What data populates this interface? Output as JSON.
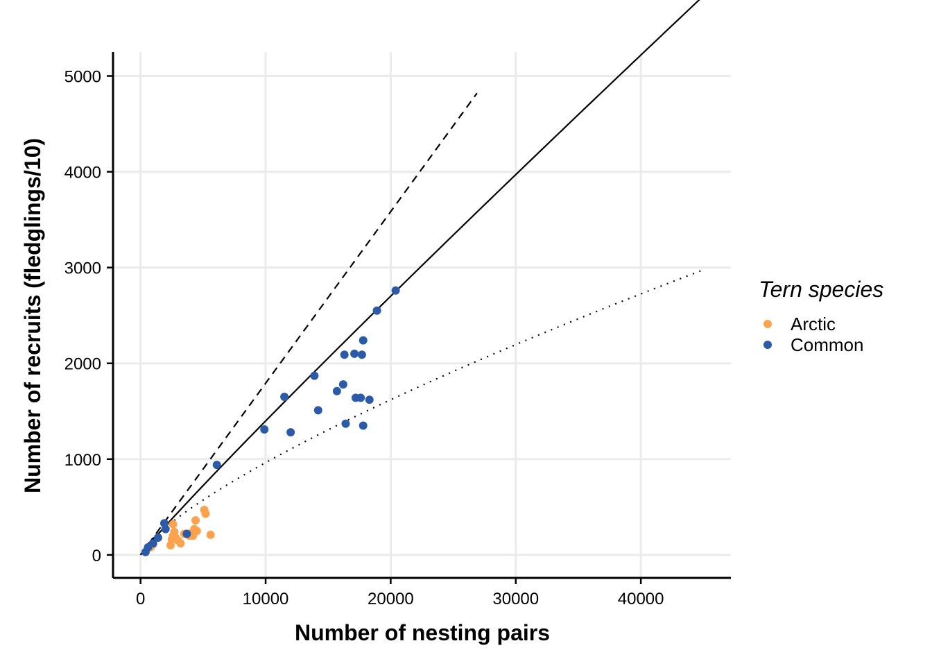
{
  "chart_data": {
    "type": "scatter",
    "xlabel": "Number of nesting pairs",
    "ylabel": "Number of recruits (fledglings/10)",
    "xlim": [
      -2200,
      47200
    ],
    "ylim": [
      -240,
      5250
    ],
    "x_ticks": [
      0,
      10000,
      20000,
      30000,
      40000
    ],
    "y_ticks": [
      0,
      1000,
      2000,
      3000,
      4000,
      5000
    ],
    "x_tick_labels": [
      "0",
      "10000",
      "20000",
      "30000",
      "40000"
    ],
    "y_tick_labels": [
      "0",
      "1000",
      "2000",
      "3000",
      "4000",
      "5000"
    ],
    "grid": true,
    "legend": {
      "title": "Tern species",
      "position": "right"
    },
    "series": [
      {
        "name": "Arctic",
        "color": "#FDA24F",
        "points": [
          [
            800,
            80
          ],
          [
            1000,
            110
          ],
          [
            2400,
            100
          ],
          [
            2500,
            160
          ],
          [
            2600,
            200
          ],
          [
            2700,
            240
          ],
          [
            2800,
            180
          ],
          [
            3000,
            150
          ],
          [
            3200,
            120
          ],
          [
            3500,
            220
          ],
          [
            3900,
            200
          ],
          [
            4100,
            230
          ],
          [
            4200,
            200
          ],
          [
            4300,
            270
          ],
          [
            4400,
            360
          ],
          [
            4500,
            250
          ],
          [
            5100,
            470
          ],
          [
            5200,
            430
          ],
          [
            5600,
            210
          ],
          [
            2600,
            320
          ]
        ]
      },
      {
        "name": "Common",
        "color": "#2B5AA8",
        "points": [
          [
            400,
            30
          ],
          [
            600,
            80
          ],
          [
            1000,
            120
          ],
          [
            1400,
            180
          ],
          [
            1900,
            330
          ],
          [
            2000,
            270
          ],
          [
            3700,
            220
          ],
          [
            6100,
            940
          ],
          [
            9900,
            1310
          ],
          [
            11500,
            1650
          ],
          [
            12000,
            1280
          ],
          [
            13900,
            1870
          ],
          [
            14200,
            1510
          ],
          [
            15700,
            1710
          ],
          [
            16200,
            1780
          ],
          [
            16300,
            2090
          ],
          [
            16400,
            1370
          ],
          [
            17100,
            2100
          ],
          [
            17200,
            1640
          ],
          [
            17600,
            1640
          ],
          [
            17700,
            2090
          ],
          [
            17800,
            2240
          ],
          [
            17800,
            1350
          ],
          [
            18300,
            1620
          ],
          [
            18900,
            2550
          ],
          [
            20400,
            2760
          ]
        ]
      }
    ],
    "lines": [
      {
        "style": "solid",
        "x_max": 45000,
        "b": 0.2047,
        "k": 0.95
      },
      {
        "style": "dashed",
        "x_max": 26900,
        "b": 0.1792,
        "k": 1.0
      },
      {
        "style": "dotted",
        "x_max": 45000,
        "b": 0.9513,
        "k": 0.75
      }
    ]
  }
}
